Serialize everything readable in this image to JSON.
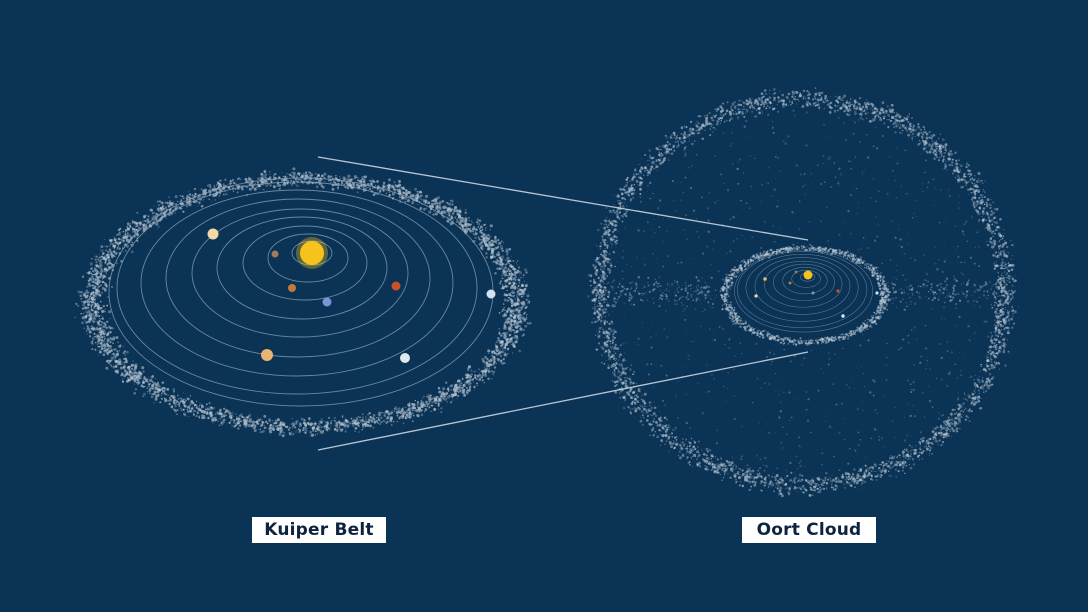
{
  "colors": {
    "background": "#0a3356",
    "particles": "#b9c6d2",
    "orbit": "#8fa3b6",
    "connector": "#d7e0e8",
    "sun": "#f6c21c",
    "label_bg": "#ffffff",
    "label_text": "#0d2340"
  },
  "labels": {
    "kuiper": "Kuiper Belt",
    "oort": "Oort Cloud"
  },
  "planet_colors": [
    "#a07d5a",
    "#c07a3c",
    "#7c93d6",
    "#c8522c",
    "#e8b472",
    "#f0d9a6",
    "#dfe7ef",
    "#cfe2f3"
  ]
}
